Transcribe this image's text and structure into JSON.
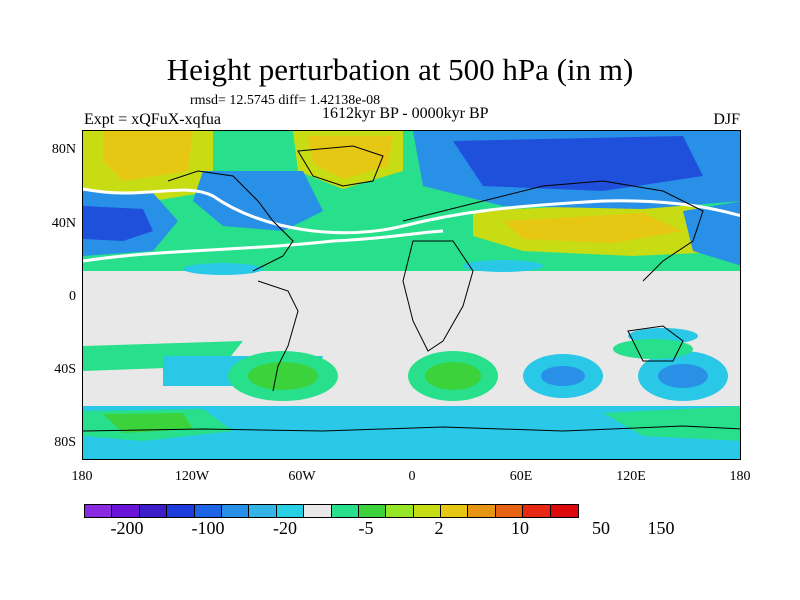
{
  "title": "Height perturbation at 500 hPa (in m)",
  "stats": "rmsd= 12.5745 diff= 1.42138e-08",
  "experiment": "Expt = xQFuX-xqfua",
  "period": "1612kyr BP - 0000kyr BP",
  "season": "DJF",
  "lat_labels": [
    "80N",
    "40N",
    "0",
    "40S",
    "80S"
  ],
  "lon_labels": [
    "180",
    "120W",
    "60W",
    "0",
    "60E",
    "120E",
    "180"
  ],
  "colorbar": {
    "colors": [
      "#8a2be2",
      "#6a14d8",
      "#3c1dc8",
      "#1e3cdc",
      "#1e64e6",
      "#2890e6",
      "#34b4e6",
      "#28d0e6",
      "#e8e8e8",
      "#28e08c",
      "#3cd23c",
      "#96e628",
      "#c8dc14",
      "#e6c814",
      "#e69614",
      "#e66414",
      "#e62814",
      "#dc0a0a"
    ],
    "labels": [
      "-200",
      "-100",
      "-20",
      "-5",
      "2",
      "10",
      "50",
      "150"
    ]
  },
  "legend_colors": {
    "strong_neg": "#1e50dc",
    "mid_neg": "#2890e6",
    "weak_neg": "#28c8e6",
    "neutral": "#e8e8e8",
    "weak_pos": "#28e08c",
    "mid_pos": "#3cd23c",
    "pos_yellow": "#c8dc14",
    "strong_pos": "#e6c814"
  }
}
